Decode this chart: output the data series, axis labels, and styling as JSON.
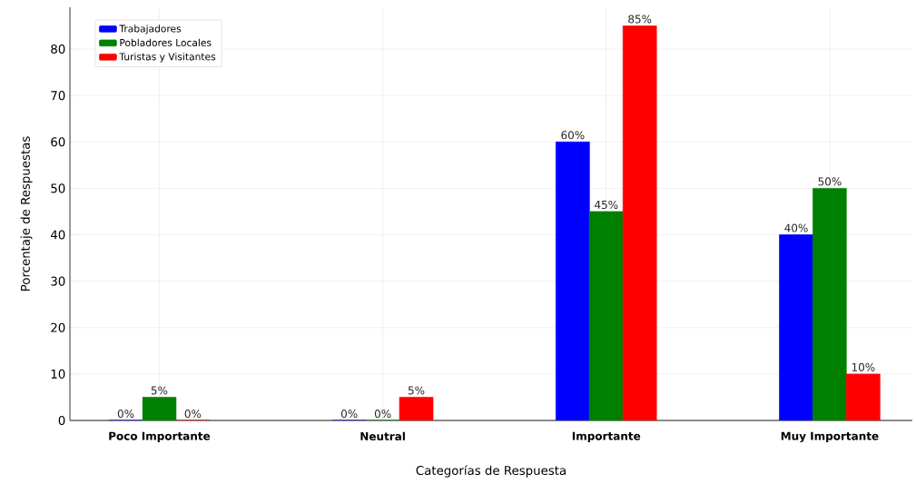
{
  "chart_data": {
    "type": "bar",
    "xlabel": "Categorías de Respuesta",
    "ylabel": "Porcentaje de Respuestas",
    "categories": [
      "Poco Importante",
      "Neutral",
      "Importante",
      "Muy Importante"
    ],
    "series": [
      {
        "name": "Trabajadores",
        "color": "#0000ff",
        "values": [
          0,
          0,
          60,
          40
        ],
        "value_labels": [
          "0%",
          "0%",
          "60%",
          "40%"
        ]
      },
      {
        "name": "Pobladores Locales",
        "color": "#008000",
        "values": [
          5,
          0,
          45,
          50
        ],
        "value_labels": [
          "5%",
          "0%",
          "45%",
          "50%"
        ]
      },
      {
        "name": "Turistas y Visitantes",
        "color": "#ff0000",
        "values": [
          0,
          5,
          85,
          10
        ],
        "value_labels": [
          "0%",
          "5%",
          "85%",
          "10%"
        ]
      }
    ],
    "ylim": [
      0,
      89
    ],
    "yticks": [
      0,
      10,
      20,
      30,
      40,
      50,
      60,
      70,
      80
    ],
    "grid": true,
    "legend": "top left"
  }
}
